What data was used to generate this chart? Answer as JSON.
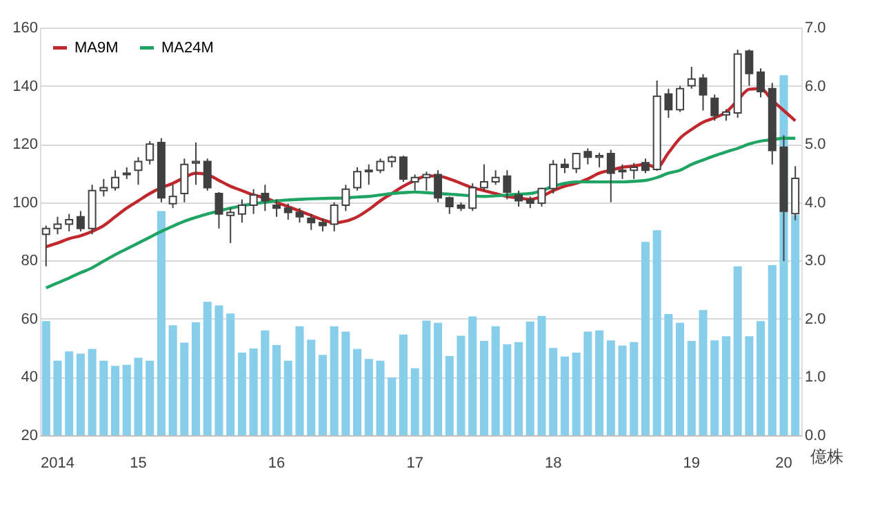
{
  "chart_data": {
    "type": "candlestick",
    "categories": [
      null,
      "2014",
      null,
      null,
      null,
      null,
      null,
      null,
      "15",
      null,
      null,
      null,
      null,
      null,
      null,
      null,
      null,
      null,
      null,
      null,
      "16",
      null,
      null,
      null,
      null,
      null,
      null,
      null,
      null,
      null,
      null,
      null,
      "17",
      null,
      null,
      null,
      null,
      null,
      null,
      null,
      null,
      null,
      null,
      null,
      "18",
      null,
      null,
      null,
      null,
      null,
      null,
      null,
      null,
      null,
      null,
      null,
      "19",
      null,
      null,
      null,
      null,
      null,
      null,
      null,
      "20",
      null
    ],
    "ohlc": [
      [
        89,
        92,
        78,
        91
      ],
      [
        91,
        95,
        89,
        92.5
      ],
      [
        92.5,
        96,
        90,
        94
      ],
      [
        95,
        97,
        90,
        91
      ],
      [
        91,
        106,
        89,
        104
      ],
      [
        104,
        108,
        102,
        105
      ],
      [
        105,
        111,
        104,
        108.5
      ],
      [
        109.5,
        112,
        108,
        110
      ],
      [
        111,
        115.5,
        106,
        114
      ],
      [
        114.5,
        121,
        113,
        120
      ],
      [
        120.5,
        122,
        100,
        101.5
      ],
      [
        99.5,
        106,
        98,
        102
      ],
      [
        103,
        115,
        100,
        113
      ],
      [
        113.5,
        120.5,
        106,
        114
      ],
      [
        114,
        115,
        104,
        105
      ],
      [
        103,
        103.5,
        91,
        96
      ],
      [
        95.5,
        98,
        86,
        96.5
      ],
      [
        96,
        101,
        93,
        99
      ],
      [
        99,
        104.5,
        96,
        102.5
      ],
      [
        103,
        106,
        97,
        100.5
      ],
      [
        99,
        101,
        95,
        98
      ],
      [
        98,
        99.5,
        94,
        96.5
      ],
      [
        96.5,
        98,
        93,
        95
      ],
      [
        94.5,
        96,
        90.5,
        93
      ],
      [
        93,
        94.5,
        90,
        92
      ],
      [
        92.5,
        100,
        90,
        99
      ],
      [
        99,
        106,
        97,
        104.5
      ],
      [
        105,
        112,
        104,
        110.5
      ],
      [
        110.5,
        113,
        106,
        111
      ],
      [
        111,
        115,
        110,
        114
      ],
      [
        114,
        116,
        112,
        115.5
      ],
      [
        115.5,
        116,
        107,
        108
      ],
      [
        107,
        109.5,
        104,
        108.5
      ],
      [
        108.5,
        110.5,
        104,
        109.5
      ],
      [
        109.5,
        111,
        100,
        101.5
      ],
      [
        101.5,
        102,
        96,
        98.5
      ],
      [
        99,
        100,
        97,
        98
      ],
      [
        98,
        106.5,
        97,
        105
      ],
      [
        105,
        113,
        104,
        107
      ],
      [
        107,
        111,
        106,
        108.5
      ],
      [
        109,
        111,
        101,
        103.5
      ],
      [
        102.5,
        104,
        98.5,
        100.5
      ],
      [
        100.8,
        102,
        98,
        99.7
      ],
      [
        99.7,
        105,
        98.5,
        104.7
      ],
      [
        104.7,
        114.5,
        103,
        113
      ],
      [
        113,
        115,
        110,
        112
      ],
      [
        111.6,
        117,
        110,
        116.7
      ],
      [
        117.4,
        118.5,
        113,
        115.5
      ],
      [
        115.5,
        117,
        112,
        116
      ],
      [
        116.7,
        118,
        100,
        110
      ],
      [
        110.5,
        113,
        108,
        111
      ],
      [
        111,
        113.5,
        108,
        112
      ],
      [
        113.6,
        115,
        110,
        111
      ],
      [
        111.3,
        141.8,
        110.8,
        136.4
      ],
      [
        137.2,
        139,
        129,
        131.8
      ],
      [
        131.8,
        140,
        131,
        139
      ],
      [
        140,
        146.5,
        139,
        142.3
      ],
      [
        142.6,
        144,
        131.5,
        136.9
      ],
      [
        135.7,
        137,
        128,
        129.8
      ],
      [
        130,
        132,
        128,
        131
      ],
      [
        130.7,
        152.4,
        129,
        150.9
      ],
      [
        151.9,
        152.5,
        140,
        144.2
      ],
      [
        144.7,
        146,
        136,
        138
      ],
      [
        139,
        141,
        113,
        117.8
      ],
      [
        118.9,
        123,
        79.8,
        96.9
      ],
      [
        96.1,
        112.4,
        93.8,
        108.2
      ]
    ],
    "series": [
      {
        "name": "MA9M",
        "type": "line",
        "color": "#c0282d",
        "values": [
          84.7,
          86,
          87.5,
          88.5,
          90,
          92,
          95,
          98,
          100.5,
          103,
          105,
          106.5,
          108.5,
          110,
          109.5,
          107.5,
          105.5,
          104,
          102.5,
          101.5,
          100,
          98.5,
          97,
          95.5,
          94,
          93,
          93.5,
          95,
          97.5,
          100.5,
          103,
          105.5,
          107.5,
          109,
          109,
          108,
          106.5,
          105,
          104,
          103,
          102,
          101.5,
          101,
          102,
          104,
          105.5,
          106.5,
          108,
          110,
          111,
          112,
          112.5,
          113,
          112,
          117,
          122,
          125,
          127.5,
          129,
          131,
          135,
          138.8,
          139,
          135,
          131.5,
          128
        ]
      },
      {
        "name": "MA24M",
        "type": "line",
        "color": "#1fa463",
        "values": [
          70.6,
          72.3,
          74,
          75.8,
          77.5,
          79.8,
          82,
          84,
          86,
          88,
          90,
          91.8,
          93.5,
          94.8,
          96,
          97,
          98,
          98.8,
          99.5,
          100,
          100.5,
          100.8,
          101,
          101.2,
          101.3,
          101.4,
          101.5,
          101.8,
          102,
          102.5,
          103,
          103.3,
          103.5,
          103.3,
          103,
          102.8,
          102.5,
          102.2,
          102,
          102.2,
          102.5,
          102.8,
          103,
          104,
          105.5,
          106.5,
          107,
          107,
          107,
          107,
          107,
          107.2,
          107.5,
          108.5,
          110,
          111,
          113,
          114.5,
          116,
          117.3,
          118.5,
          120,
          121,
          121.5,
          122,
          122
        ]
      },
      {
        "type": "bar",
        "axis": "y2",
        "color": "#87ceeb",
        "values": [
          1.96,
          1.28,
          1.44,
          1.4,
          1.48,
          1.28,
          1.19,
          1.21,
          1.33,
          1.28,
          3.85,
          1.89,
          1.59,
          1.94,
          2.29,
          2.23,
          2.09,
          1.42,
          1.49,
          1.8,
          1.55,
          1.28,
          1.87,
          1.64,
          1.38,
          1.87,
          1.78,
          1.48,
          1.31,
          1.28,
          0.99,
          1.73,
          1.15,
          1.97,
          1.93,
          1.36,
          1.71,
          2.04,
          1.62,
          1.87,
          1.56,
          1.6,
          1.95,
          2.05,
          1.5,
          1.35,
          1.42,
          1.78,
          1.8,
          1.63,
          1.54,
          1.6,
          3.32,
          3.52,
          2.08,
          1.93,
          1.62,
          2.15,
          1.63,
          1.7,
          2.9,
          1.7,
          1.96,
          2.92,
          6.18,
          3.78
        ]
      }
    ],
    "ylim": [
      20,
      160
    ],
    "yticks": [
      20,
      40,
      60,
      80,
      100,
      120,
      140,
      160
    ],
    "y2lim": [
      0,
      7
    ],
    "y2ticks": [
      {
        "value": 0,
        "label": "0.0"
      },
      {
        "value": 1,
        "label": "1.0"
      },
      {
        "value": 2,
        "label": "2.0"
      },
      {
        "value": 3,
        "label": "3.0"
      },
      {
        "value": 4,
        "label": "4.0"
      },
      {
        "value": 5,
        "label": "5.0"
      },
      {
        "value": 6,
        "label": "6.0"
      },
      {
        "value": 7,
        "label": "7.0"
      }
    ],
    "y2label": "億株",
    "grid": "y",
    "legend": "top left"
  }
}
